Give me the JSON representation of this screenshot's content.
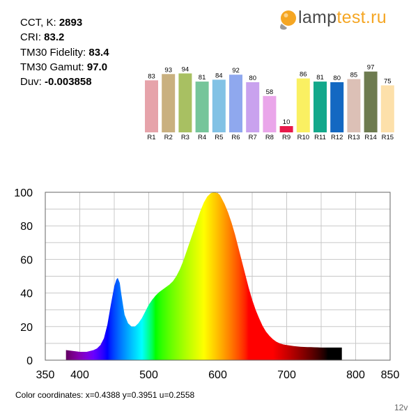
{
  "stats": [
    {
      "label": "CCT, K: ",
      "value": "2893"
    },
    {
      "label": "CRI: ",
      "value": "83.2"
    },
    {
      "label": "TM30 Fidelity: ",
      "value": "83.4"
    },
    {
      "label": "TM30 Gamut: ",
      "value": "97.0"
    },
    {
      "label": "Duv: ",
      "value": "-0.003858"
    }
  ],
  "logo": {
    "part_a": "lamp",
    "part_b": "test.ru",
    "icon": "lightbulb-icon",
    "accent": "#f5a623"
  },
  "color_coordinates": "Color coordinates: x=0.4388 y=0.3951 u=0.2558",
  "footer_note": "12v",
  "chart_data": [
    {
      "type": "bar",
      "categories": [
        "R1",
        "R2",
        "R3",
        "R4",
        "R5",
        "R6",
        "R7",
        "R8",
        "R9",
        "R10",
        "R11",
        "R12",
        "R13",
        "R14",
        "R15"
      ],
      "values": [
        83,
        93,
        94,
        81,
        84,
        92,
        80,
        58,
        10,
        86,
        81,
        80,
        85,
        97,
        75
      ],
      "colors": [
        "#e6a3aa",
        "#c9b07f",
        "#a8c062",
        "#75c59a",
        "#82c2e5",
        "#8fa8ee",
        "#c9a2ee",
        "#eaa6ea",
        "#e8194a",
        "#faf062",
        "#13a88b",
        "#1368c2",
        "#dcc0b6",
        "#6d7b4f",
        "#fde0aa"
      ],
      "ylim": [
        0,
        100
      ]
    },
    {
      "type": "area",
      "title": "",
      "xlabel": "",
      "ylabel": "",
      "xlim": [
        350,
        850
      ],
      "ylim": [
        0,
        100
      ],
      "xticks": [
        350,
        400,
        500,
        600,
        700,
        800,
        850
      ],
      "yticks": [
        0,
        20,
        40,
        60,
        80,
        100
      ],
      "grid": true,
      "x": [
        380,
        390,
        400,
        410,
        420,
        425,
        430,
        435,
        440,
        445,
        450,
        453,
        455,
        458,
        460,
        463,
        465,
        470,
        475,
        480,
        485,
        490,
        495,
        500,
        505,
        510,
        515,
        520,
        525,
        530,
        535,
        540,
        545,
        550,
        555,
        560,
        565,
        570,
        575,
        580,
        585,
        590,
        595,
        600,
        603,
        605,
        610,
        615,
        620,
        625,
        630,
        635,
        640,
        645,
        650,
        655,
        660,
        665,
        670,
        675,
        680,
        685,
        690,
        695,
        700,
        705,
        710,
        715,
        720,
        725,
        730,
        735,
        740,
        745,
        750,
        755,
        760,
        765,
        770,
        780
      ],
      "y": [
        6,
        5.5,
        5,
        5,
        6,
        7,
        9,
        13,
        21,
        33,
        44,
        48,
        49,
        46,
        40,
        32,
        27,
        22,
        20,
        20,
        22,
        25,
        29,
        33,
        36,
        38.5,
        40.5,
        42,
        43.5,
        45,
        47,
        50,
        54,
        59,
        65,
        71,
        77,
        83,
        89,
        94,
        97.5,
        99.5,
        100,
        99.5,
        98.5,
        97,
        93,
        88,
        82,
        75,
        67,
        59,
        51,
        43,
        36,
        30,
        25,
        20.5,
        17,
        14.5,
        12.5,
        11,
        10,
        9.4,
        9,
        8.7,
        8.4,
        8.2,
        8,
        7.9,
        7.8,
        7.8,
        7.7,
        7.6,
        7.5,
        7.5,
        7.5,
        7.5,
        7.5,
        7.5
      ]
    }
  ]
}
